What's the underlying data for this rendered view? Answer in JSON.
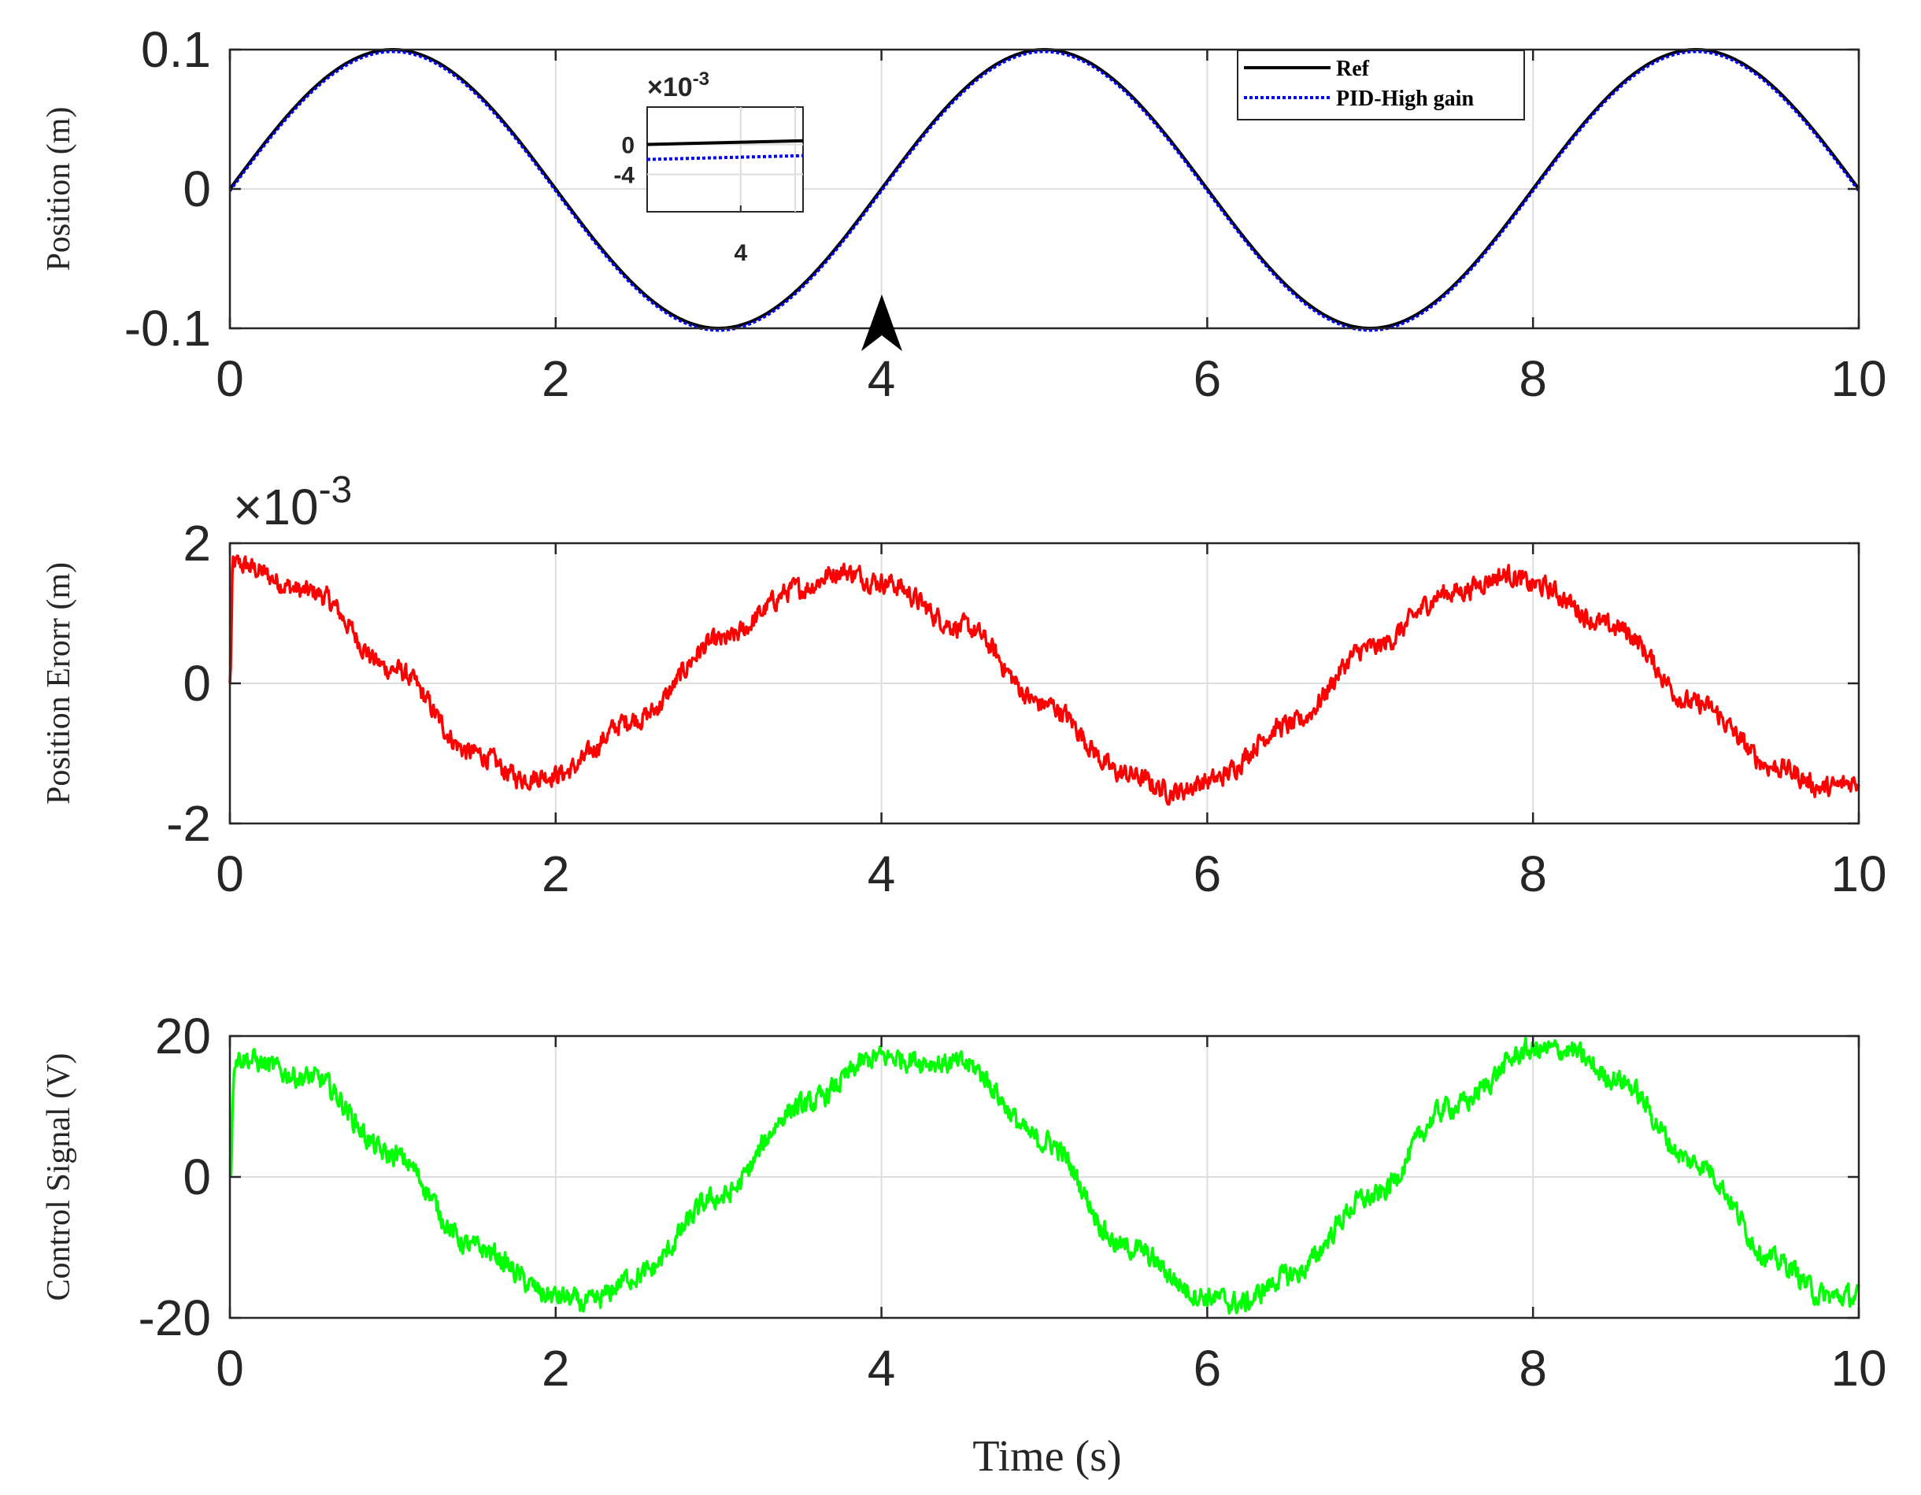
{
  "figure": {
    "xlabel": "Time (s)"
  },
  "chart_data": [
    {
      "type": "line",
      "ylabel": "Position (m)",
      "xlim": [
        0,
        10
      ],
      "ylim": [
        -0.1,
        0.1
      ],
      "xticks": [
        "0",
        "2",
        "4",
        "6",
        "8",
        "10"
      ],
      "yticks": [
        "0.1",
        "0",
        "-0.1"
      ],
      "yticks_values": [
        0.1,
        0,
        -0.1
      ],
      "grid": true,
      "legend_position": "top-right",
      "series": [
        {
          "name": "Ref",
          "color": "#000000",
          "style": "solid",
          "formula": "0.1*sin(pi*t/2)"
        },
        {
          "name": "PID-High gain",
          "color": "#0000ff",
          "style": "dotted",
          "formula": "0.1*sin(pi*t/2) - 0.0015"
        }
      ],
      "x": [
        0,
        0.5,
        1,
        1.5,
        2,
        2.5,
        3,
        3.5,
        4,
        4.5,
        5,
        5.5,
        6,
        6.5,
        7,
        7.5,
        8,
        8.5,
        9,
        9.5,
        10
      ],
      "y_ref": [
        0,
        0.0707,
        0.1,
        0.0707,
        0,
        -0.0707,
        -0.1,
        -0.0707,
        0,
        0.0707,
        0.1,
        0.0707,
        0,
        -0.0707,
        -0.1,
        -0.0707,
        0,
        0.0707,
        0.1,
        0.0707,
        0
      ],
      "annotation": {
        "type": "arrow",
        "x": 4,
        "direction": "up"
      },
      "inset": {
        "exponent_label": "×10",
        "exponent": "-3",
        "yticks": [
          "0",
          "-4"
        ],
        "xticks": [
          "4"
        ],
        "ref_values": [
          0.0,
          0.5
        ],
        "pid_values": [
          -2.0,
          -1.5
        ],
        "ylim": [
          -9,
          5
        ]
      }
    },
    {
      "type": "line",
      "ylabel": "Position Erorr (m)",
      "xlim": [
        0,
        10
      ],
      "ylim": [
        -0.002,
        0.002
      ],
      "exponent_label": "×10",
      "exponent": "-3",
      "xticks": [
        "0",
        "2",
        "4",
        "6",
        "8",
        "10"
      ],
      "yticks": [
        "2",
        "0",
        "-2"
      ],
      "yticks_values": [
        2,
        0,
        -2
      ],
      "grid": true,
      "series": [
        {
          "name": "",
          "color": "#ff0000"
        }
      ],
      "x": [
        0,
        0.02,
        0.5,
        1.0,
        1.5,
        1.8,
        2.0,
        2.5,
        3.0,
        3.5,
        3.75,
        4.0,
        4.5,
        5.0,
        5.5,
        5.8,
        6.0,
        6.5,
        7.0,
        7.5,
        7.85,
        8.0,
        8.5,
        9.0,
        9.5,
        9.8,
        10.0
      ],
      "y": [
        0,
        1.7,
        1.3,
        0.2,
        -1.0,
        -1.35,
        -1.3,
        -0.5,
        0.6,
        1.35,
        1.6,
        1.45,
        0.8,
        -0.3,
        -1.3,
        -1.55,
        -1.4,
        -0.6,
        0.5,
        1.3,
        1.55,
        1.4,
        0.8,
        -0.3,
        -1.2,
        -1.5,
        -1.4
      ]
    },
    {
      "type": "line",
      "ylabel": "Control Signal (V)",
      "xlim": [
        0,
        10
      ],
      "ylim": [
        -20,
        20
      ],
      "xticks": [
        "0",
        "2",
        "4",
        "6",
        "8",
        "10"
      ],
      "yticks": [
        "20",
        "0",
        "-20"
      ],
      "yticks_values": [
        20,
        0,
        -20
      ],
      "grid": true,
      "series": [
        {
          "name": "",
          "color": "#00ff00"
        }
      ],
      "x": [
        0,
        0.03,
        0.5,
        1.0,
        1.5,
        2.0,
        2.2,
        2.5,
        3.0,
        3.5,
        4.0,
        4.5,
        5.0,
        5.5,
        6.0,
        6.2,
        6.5,
        7.0,
        7.5,
        8.0,
        8.2,
        8.5,
        9.0,
        9.5,
        9.8,
        10.0
      ],
      "y": [
        0,
        17,
        14,
        3,
        -10,
        -17,
        -18,
        -14,
        -3,
        10,
        17,
        16,
        5,
        -10,
        -17,
        -18,
        -14,
        -3,
        10,
        18,
        18,
        14,
        2,
        -12,
        -17,
        -17
      ]
    }
  ]
}
